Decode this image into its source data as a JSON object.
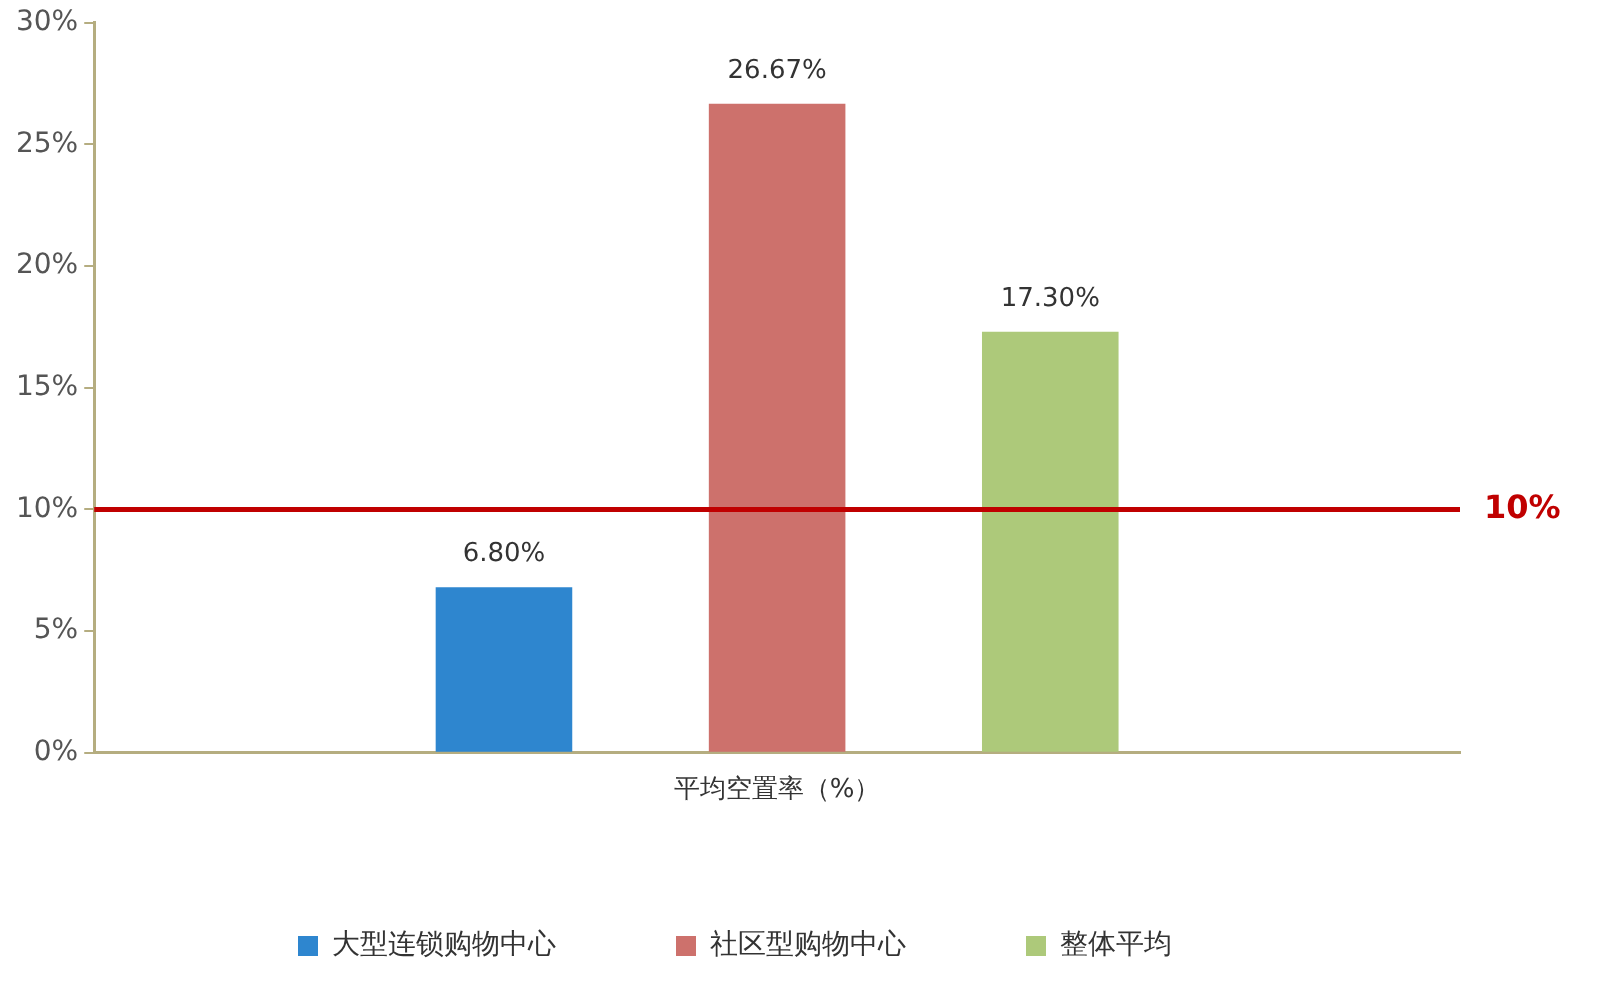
{
  "chart_data": {
    "type": "bar",
    "categories": [
      "平均空置率（%）"
    ],
    "series": [
      {
        "name": "大型连锁购物中心",
        "color": "#2e86cf",
        "values": [
          6.8
        ],
        "value_labels": [
          "6.80%"
        ]
      },
      {
        "name": "社区型购物中心",
        "color": "#cd716c",
        "values": [
          26.67
        ],
        "value_labels": [
          "26.67%"
        ]
      },
      {
        "name": "整体平均",
        "color": "#adc97a",
        "values": [
          17.3
        ],
        "value_labels": [
          "17.30%"
        ]
      }
    ],
    "ylim": [
      0,
      30
    ],
    "yticks": [
      {
        "value": 0,
        "label": "0%"
      },
      {
        "value": 5,
        "label": "5%"
      },
      {
        "value": 10,
        "label": "10%"
      },
      {
        "value": 15,
        "label": "15%"
      },
      {
        "value": 20,
        "label": "20%"
      },
      {
        "value": 25,
        "label": "25%"
      },
      {
        "value": 30,
        "label": "30%"
      }
    ],
    "ref_lines": [
      {
        "axis": "y",
        "value": 10,
        "label": "10%",
        "color": "#c00000"
      }
    ],
    "grid": false,
    "legend": "bottom"
  }
}
